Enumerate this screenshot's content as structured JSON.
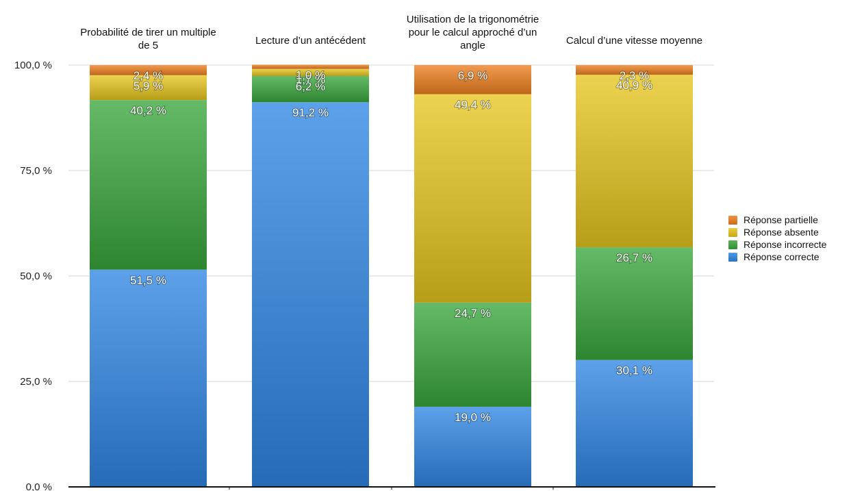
{
  "chart_data": {
    "type": "bar",
    "stacked": true,
    "categories": [
      "Probabilité de tirer un multiple de 5",
      "Lecture d’un antécédent",
      "Utilisation de la trigonométrie pour le calcul approché d’un angle",
      "Calcul d’une vitesse moyenne"
    ],
    "category_lines": [
      [
        "Probabilité de tirer un multiple",
        "de 5"
      ],
      [
        "Lecture d’un antécédent"
      ],
      [
        "Utilisation de la trigonométrie",
        "pour le calcul approché d’un",
        "angle"
      ],
      [
        "Calcul d’une vitesse moyenne"
      ]
    ],
    "series": [
      {
        "name": "Réponse correcte",
        "color": "#2f86e4",
        "values": [
          51.5,
          91.2,
          19.0,
          30.1
        ],
        "labels": [
          "51,5 %",
          "91,2 %",
          "19,0 %",
          "30,1 %"
        ]
      },
      {
        "name": "Réponse incorrecte",
        "color": "#3aa63c",
        "values": [
          40.2,
          6.2,
          24.7,
          26.7
        ],
        "labels": [
          "40,2 %",
          "6,2 %",
          "24,7 %",
          "26,7 %"
        ]
      },
      {
        "name": "Réponse absente",
        "color": "#e6c51e",
        "values": [
          5.9,
          1.7,
          49.4,
          40.9
        ],
        "labels": [
          "5,9 %",
          "1,7 %",
          "49,4 %",
          "40,9 %"
        ]
      },
      {
        "name": "Réponse partielle",
        "color": "#ee7f1f",
        "values": [
          2.4,
          1.0,
          6.9,
          2.3
        ],
        "labels": [
          "2,4 %",
          "1,0 %",
          "6,9 %",
          "2,3 %"
        ]
      }
    ],
    "yticks": [
      {
        "value": 0,
        "label": "0,0 %"
      },
      {
        "value": 25,
        "label": "25,0 %"
      },
      {
        "value": 50,
        "label": "50,0 %"
      },
      {
        "value": 75,
        "label": "75,0 %"
      },
      {
        "value": 100,
        "label": "100,0 %"
      }
    ],
    "ylim": [
      0,
      100
    ],
    "grid": true,
    "legend_position": "right",
    "legend_order": [
      "Réponse partielle",
      "Réponse absente",
      "Réponse incorrecte",
      "Réponse correcte"
    ],
    "title": "",
    "xlabel": "",
    "ylabel": ""
  }
}
